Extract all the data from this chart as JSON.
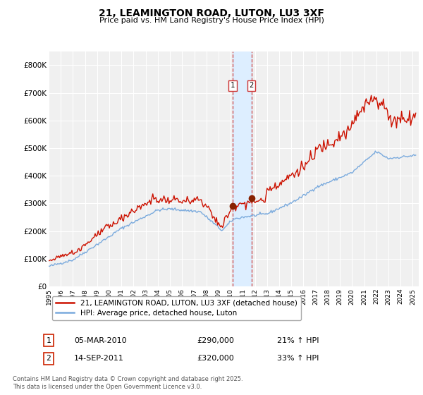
{
  "title": "21, LEAMINGTON ROAD, LUTON, LU3 3XF",
  "subtitle": "Price paid vs. HM Land Registry's House Price Index (HPI)",
  "ylim": [
    0,
    850000
  ],
  "yticks": [
    0,
    100000,
    200000,
    300000,
    400000,
    500000,
    600000,
    700000,
    800000
  ],
  "ytick_labels": [
    "£0",
    "£100K",
    "£200K",
    "£300K",
    "£400K",
    "£500K",
    "£600K",
    "£700K",
    "£800K"
  ],
  "bg_color": "#f0f0f0",
  "grid_color": "#ffffff",
  "hpi_line_color": "#7aaadd",
  "price_line_color": "#cc1100",
  "marker_color": "#882200",
  "purchase1_date": 2010.17,
  "purchase1_price": 290000,
  "purchase2_date": 2011.71,
  "purchase2_price": 320000,
  "vline_color": "#cc4444",
  "vband_color": "#ddeeff",
  "legend_label_price": "21, LEAMINGTON ROAD, LUTON, LU3 3XF (detached house)",
  "legend_label_hpi": "HPI: Average price, detached house, Luton",
  "footnote": "Contains HM Land Registry data © Crown copyright and database right 2025.\nThis data is licensed under the Open Government Licence v3.0.",
  "table_row1": [
    "1",
    "05-MAR-2010",
    "£290,000",
    "21% ↑ HPI"
  ],
  "table_row2": [
    "2",
    "14-SEP-2011",
    "£320,000",
    "33% ↑ HPI"
  ]
}
